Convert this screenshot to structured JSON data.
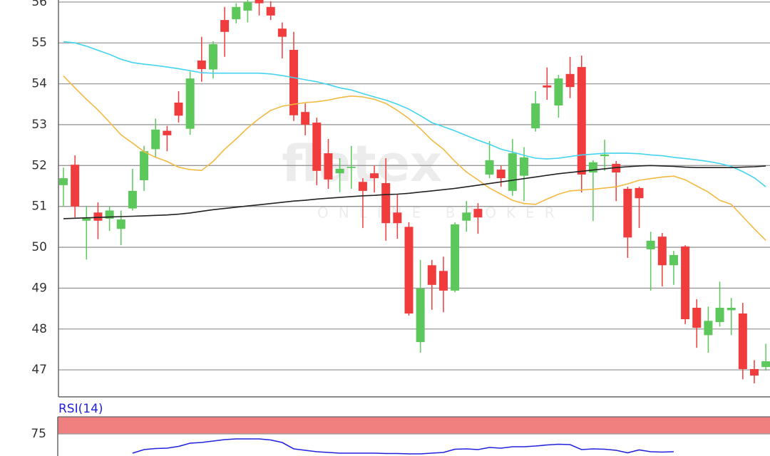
{
  "chart_data": [
    {
      "type": "candlestick",
      "watermark": "flatex",
      "watermark_sub": "ONLINE BROKER",
      "ylim": [
        46.34,
        56.05
      ],
      "yticks": [
        47,
        48,
        49,
        50,
        51,
        52,
        53,
        54,
        55,
        56
      ],
      "grid": true,
      "up_color": "#5cc85c",
      "down_color": "#f03c3c",
      "open": [
        51.52,
        52.02,
        50.65,
        50.85,
        50.7,
        50.45,
        50.95,
        51.64,
        52.4,
        52.85,
        53.54,
        52.9,
        54.57,
        54.35,
        55.56,
        55.58,
        55.79,
        56.05,
        55.88,
        55.35,
        54.83,
        53.31,
        53.05,
        52.3,
        51.81,
        51.94,
        51.6,
        51.81,
        51.57,
        50.85,
        50.5,
        47.68,
        49.56,
        49.42,
        48.94,
        50.65,
        50.94,
        51.78,
        51.9,
        51.38,
        51.75,
        52.91,
        53.96,
        53.47,
        54.24,
        54.41,
        51.83,
        52.23,
        52.04,
        51.43,
        51.45,
        49.95,
        50.26,
        49.56,
        50.02,
        48.52,
        47.85,
        48.17,
        48.46,
        48.38,
        47.02,
        47.07
      ],
      "high": [
        51.95,
        52.25,
        51.0,
        51.1,
        51.0,
        50.9,
        51.92,
        52.48,
        53.15,
        52.97,
        53.82,
        54.3,
        55.15,
        55.04,
        55.88,
        55.97,
        56.05,
        56.05,
        56.02,
        55.5,
        55.27,
        53.52,
        53.17,
        52.65,
        52.18,
        52.48,
        51.69,
        52.0,
        52.18,
        51.29,
        50.61,
        49.69,
        49.69,
        49.77,
        50.61,
        51.13,
        51.08,
        52.6,
        52.0,
        52.65,
        52.45,
        53.82,
        54.4,
        54.22,
        54.66,
        54.69,
        52.13,
        52.63,
        52.11,
        51.48,
        51.48,
        50.38,
        50.35,
        49.91,
        50.05,
        48.73,
        48.55,
        49.16,
        48.76,
        48.64,
        47.24,
        47.64
      ],
      "low": [
        51.0,
        50.73,
        49.7,
        50.2,
        50.4,
        50.05,
        50.9,
        51.38,
        52.2,
        52.35,
        53.05,
        52.75,
        54.05,
        54.13,
        54.66,
        55.48,
        55.5,
        55.67,
        55.56,
        54.62,
        53.09,
        52.74,
        51.52,
        51.43,
        51.35,
        51.43,
        50.47,
        51.34,
        50.16,
        50.21,
        48.33,
        47.42,
        48.47,
        48.41,
        48.9,
        50.38,
        50.33,
        51.69,
        51.48,
        51.26,
        51.13,
        52.83,
        53.61,
        53.17,
        53.65,
        51.34,
        50.64,
        51.87,
        51.13,
        49.74,
        50.47,
        48.94,
        49.04,
        49.08,
        48.12,
        47.54,
        47.42,
        48.06,
        47.85,
        46.77,
        46.67,
        46.98
      ],
      "close": [
        51.69,
        51.0,
        50.73,
        50.65,
        50.9,
        50.68,
        51.38,
        52.35,
        52.88,
        52.74,
        53.22,
        54.13,
        54.36,
        54.97,
        55.27,
        55.88,
        56.0,
        55.97,
        55.67,
        55.15,
        53.23,
        53.0,
        51.87,
        51.66,
        51.92,
        51.97,
        51.38,
        51.69,
        50.59,
        50.59,
        48.38,
        48.99,
        49.08,
        48.94,
        50.56,
        50.85,
        50.73,
        52.13,
        51.69,
        52.3,
        52.2,
        53.52,
        53.91,
        54.13,
        53.92,
        51.78,
        52.08,
        52.27,
        51.83,
        50.24,
        51.2,
        50.16,
        49.56,
        49.81,
        48.24,
        48.03,
        48.2,
        48.52,
        48.52,
        47.02,
        46.86,
        47.21
      ],
      "lines": [
        {
          "color": "#f5b942",
          "values": [
            54.19,
            53.9,
            53.62,
            53.36,
            53.06,
            52.75,
            52.55,
            52.34,
            52.2,
            52.1,
            51.96,
            51.9,
            51.88,
            52.1,
            52.4,
            52.65,
            52.92,
            53.15,
            53.35,
            53.45,
            53.5,
            53.54,
            53.56,
            53.6,
            53.66,
            53.7,
            53.68,
            53.62,
            53.52,
            53.35,
            53.15,
            52.9,
            52.62,
            52.4,
            52.1,
            51.84,
            51.65,
            51.45,
            51.3,
            51.15,
            51.07,
            51.05,
            51.18,
            51.3,
            51.38,
            51.4,
            51.42,
            51.45,
            51.48,
            51.55,
            51.64,
            51.68,
            51.72,
            51.74,
            51.65,
            51.5,
            51.35,
            51.15,
            51.05,
            50.75,
            50.45,
            50.17
          ]
        },
        {
          "color": "#44d4f0",
          "values": [
            55.03,
            55.0,
            54.92,
            54.82,
            54.72,
            54.6,
            54.52,
            54.48,
            54.45,
            54.41,
            54.37,
            54.32,
            54.27,
            54.26,
            54.26,
            54.26,
            54.26,
            54.26,
            54.24,
            54.2,
            54.15,
            54.1,
            54.05,
            53.98,
            53.9,
            53.85,
            53.76,
            53.68,
            53.6,
            53.5,
            53.38,
            53.22,
            53.05,
            52.95,
            52.85,
            52.73,
            52.62,
            52.52,
            52.4,
            52.33,
            52.25,
            52.18,
            52.16,
            52.18,
            52.22,
            52.26,
            52.28,
            52.3,
            52.3,
            52.3,
            52.29,
            52.26,
            52.24,
            52.2,
            52.17,
            52.14,
            52.1,
            52.05,
            51.98,
            51.85,
            51.7,
            51.48
          ]
        },
        {
          "color": "#222222",
          "values": [
            50.7,
            50.71,
            50.72,
            50.73,
            50.74,
            50.75,
            50.76,
            50.77,
            50.78,
            50.79,
            50.81,
            50.84,
            50.88,
            50.92,
            50.95,
            50.98,
            51.01,
            51.04,
            51.07,
            51.1,
            51.13,
            51.15,
            51.18,
            51.2,
            51.22,
            51.24,
            51.26,
            51.27,
            51.29,
            51.3,
            51.32,
            51.35,
            51.38,
            51.41,
            51.44,
            51.48,
            51.52,
            51.56,
            51.6,
            51.64,
            51.68,
            51.72,
            51.76,
            51.8,
            51.83,
            51.86,
            51.89,
            51.92,
            51.95,
            51.97,
            51.99,
            52.0,
            51.99,
            51.98,
            51.96,
            51.95,
            51.95,
            51.95,
            51.95,
            51.96,
            51.97,
            51.99
          ]
        }
      ]
    },
    {
      "type": "line",
      "title": "RSI(14)",
      "ylim": [
        68.8,
        79.8
      ],
      "yticks": [
        75
      ],
      "grid": true,
      "overbought": 75,
      "band_color": "#f08080",
      "color": "#2222dd",
      "values": [
        null,
        null,
        null,
        null,
        null,
        null,
        69.6,
        70.6,
        70.9,
        71.0,
        71.5,
        72.4,
        72.6,
        73.0,
        73.4,
        73.6,
        73.6,
        73.6,
        73.3,
        72.6,
        70.8,
        70.4,
        70.0,
        69.8,
        69.6,
        69.6,
        69.6,
        69.6,
        69.5,
        69.5,
        69.4,
        69.4,
        69.6,
        69.8,
        70.7,
        70.8,
        70.6,
        71.2,
        71.0,
        71.4,
        71.4,
        71.6,
        71.9,
        72.1,
        72.0,
        70.6,
        70.8,
        70.7,
        70.4,
        69.7,
        70.5,
        70.0,
        69.9,
        70.0,
        null,
        null,
        null,
        null,
        null,
        null,
        null,
        null
      ]
    }
  ]
}
